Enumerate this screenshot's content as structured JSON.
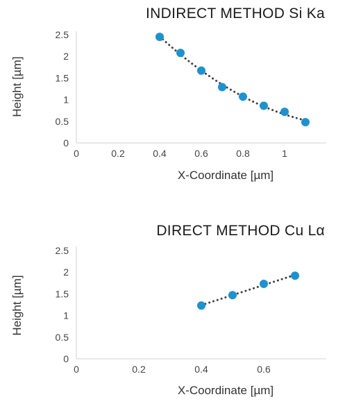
{
  "chart_data": [
    {
      "type": "scatter",
      "title": "INDIRECT METHOD Si Ka",
      "xlabel": "X-Coordinate [µm]",
      "ylabel": "Height [µm]",
      "xlim": [
        0,
        1.2
      ],
      "ylim": [
        0,
        2.5
      ],
      "x_ticks": [
        "0",
        "0.2",
        "0.4",
        "0.6",
        "0.8",
        "1"
      ],
      "y_ticks": [
        "0",
        "0.5",
        "1",
        "1.5",
        "2",
        "2.5"
      ],
      "series": [
        {
          "x": [
            0.4,
            0.5,
            0.6,
            0.7,
            0.8,
            0.9,
            1.0,
            1.1
          ],
          "y": [
            2.45,
            2.08,
            1.67,
            1.29,
            1.07,
            0.86,
            0.72,
            0.48
          ]
        }
      ],
      "trendline": "polynomial-dotted",
      "color": "#1a93d4"
    },
    {
      "type": "scatter",
      "title": "DIRECT METHOD Cu Lα",
      "xlabel": "X-Coordinate [µm]",
      "ylabel": "Height [µm]",
      "xlim": [
        0,
        0.8
      ],
      "ylim": [
        0,
        2.5
      ],
      "x_ticks": [
        "0",
        "0.2",
        "0.4",
        "0.6"
      ],
      "y_ticks": [
        "0",
        "0.5",
        "1",
        "1.5",
        "2",
        "2.5"
      ],
      "series": [
        {
          "x": [
            0.4,
            0.5,
            0.6,
            0.7
          ],
          "y": [
            1.23,
            1.47,
            1.73,
            1.92
          ]
        }
      ],
      "trendline": "linear-dotted",
      "color": "#1a93d4"
    }
  ]
}
